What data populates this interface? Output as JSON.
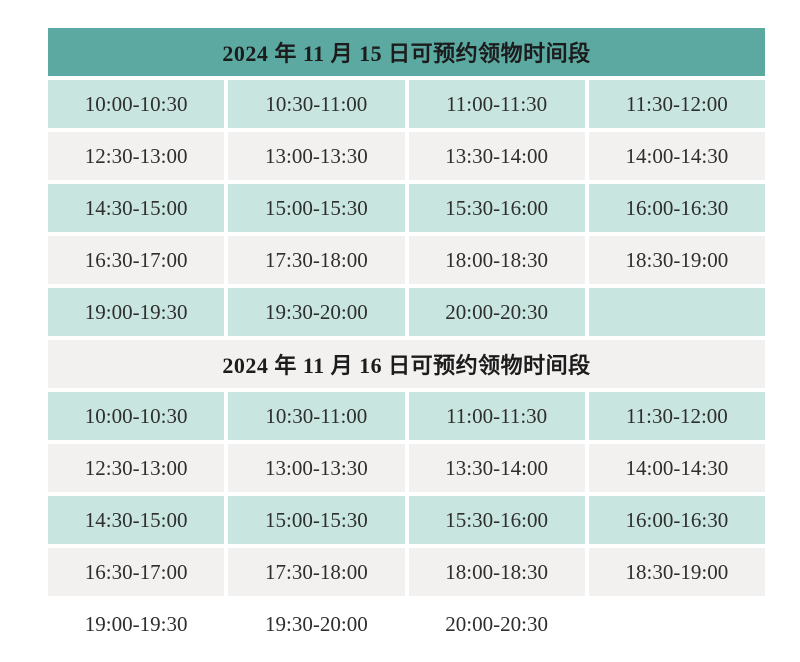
{
  "colors": {
    "header_teal": "#5BA9A1",
    "row_teal": "#C9E5DF",
    "row_gray": "#F2F1EF",
    "title_text": "#1C1C1C",
    "cell_text": "#2E2E2E",
    "page_background": "#FFFFFF"
  },
  "tables": [
    {
      "title": "2024 年 11 月 15 日可预约领物时间段",
      "header_style": "teal",
      "rows": [
        {
          "style": "teal",
          "cells": [
            "10:00-10:30",
            "10:30-11:00",
            "11:00-11:30",
            "11:30-12:00"
          ]
        },
        {
          "style": "gray",
          "cells": [
            "12:30-13:00",
            "13:00-13:30",
            "13:30-14:00",
            "14:00-14:30"
          ]
        },
        {
          "style": "teal",
          "cells": [
            "14:30-15:00",
            "15:00-15:30",
            "15:30-16:00",
            "16:00-16:30"
          ]
        },
        {
          "style": "gray",
          "cells": [
            "16:30-17:00",
            "17:30-18:00",
            "18:00-18:30",
            "18:30-19:00"
          ]
        },
        {
          "style": "teal",
          "cells": [
            "19:00-19:30",
            "19:30-20:00",
            "20:00-20:30",
            ""
          ]
        }
      ]
    },
    {
      "title": "2024 年 11 月 16 日可预约领物时间段",
      "header_style": "gray",
      "rows": [
        {
          "style": "teal",
          "cells": [
            "10:00-10:30",
            "10:30-11:00",
            "11:00-11:30",
            "11:30-12:00"
          ]
        },
        {
          "style": "gray",
          "cells": [
            "12:30-13:00",
            "13:00-13:30",
            "13:30-14:00",
            "14:00-14:30"
          ]
        },
        {
          "style": "teal",
          "cells": [
            "14:30-15:00",
            "15:00-15:30",
            "15:30-16:00",
            "16:00-16:30"
          ]
        },
        {
          "style": "gray",
          "cells": [
            "16:30-17:00",
            "17:30-18:00",
            "18:00-18:30",
            "18:30-19:00"
          ]
        },
        {
          "style": "white",
          "cells": [
            "19:00-19:30",
            "19:30-20:00",
            "20:00-20:30",
            ""
          ]
        }
      ]
    }
  ]
}
